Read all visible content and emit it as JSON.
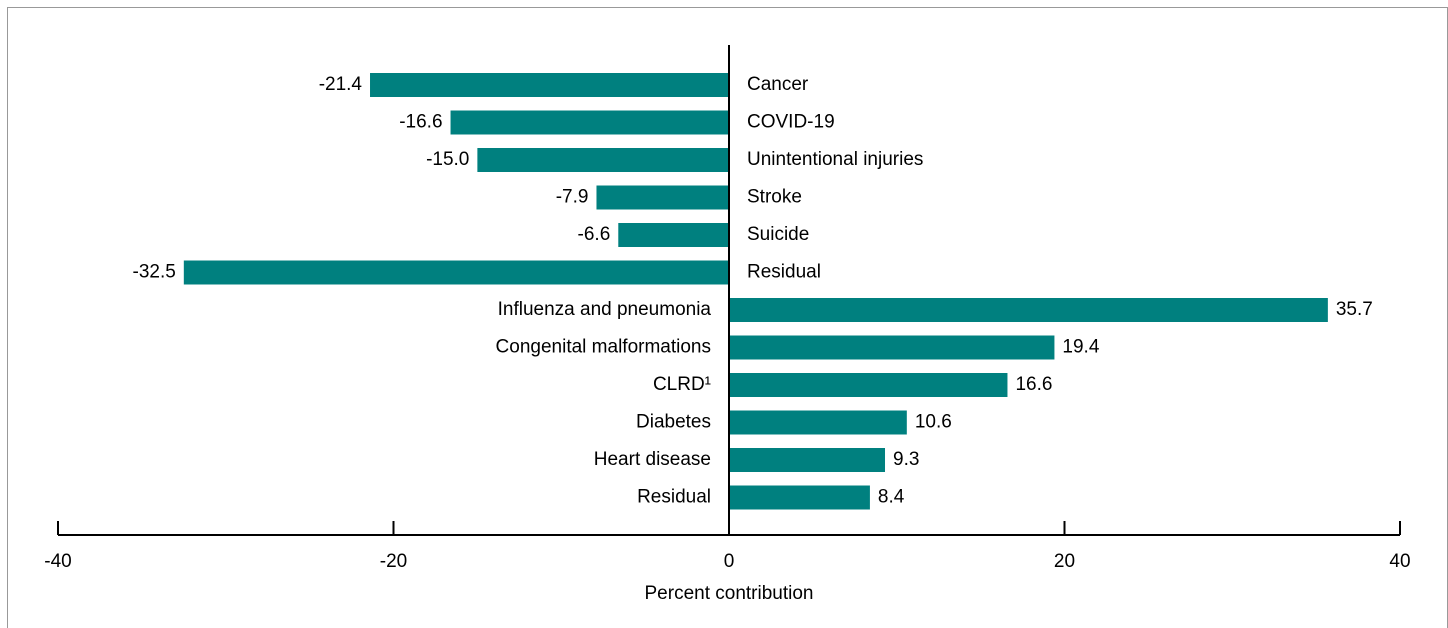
{
  "chart_data": {
    "type": "bar",
    "orientation": "horizontal",
    "categories": [
      "Cancer",
      "COVID-19",
      "Unintentional injuries",
      "Stroke",
      "Suicide",
      "Residual",
      "Influenza and pneumonia",
      "Congenital malformations",
      "CLRD¹",
      "Diabetes",
      "Heart disease",
      "Residual"
    ],
    "values": [
      -21.4,
      -16.6,
      -15.0,
      -7.9,
      -6.6,
      -32.5,
      35.7,
      19.4,
      16.6,
      10.6,
      9.3,
      8.4
    ],
    "value_labels": [
      "-21.4",
      "-16.6",
      "-15.0",
      "-7.9",
      "-6.6",
      "-32.5",
      "35.7",
      "19.4",
      "16.6",
      "10.6",
      "9.3",
      "8.4"
    ],
    "color": "#00807f",
    "xlim": [
      -40,
      40
    ],
    "xticks": [
      -40,
      -20,
      0,
      20,
      40
    ],
    "xlabel": "Percent contribution"
  }
}
